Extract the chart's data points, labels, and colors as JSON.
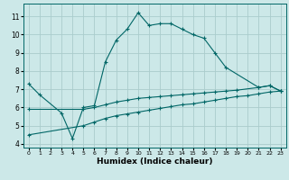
{
  "xlabel": "Humidex (Indice chaleur)",
  "bg_color": "#cce8e8",
  "grid_color": "#aacccc",
  "line_color": "#006666",
  "xlim": [
    -0.5,
    23.5
  ],
  "ylim": [
    3.8,
    11.7
  ],
  "xticks": [
    0,
    1,
    2,
    3,
    4,
    5,
    6,
    7,
    8,
    9,
    10,
    11,
    12,
    13,
    14,
    15,
    16,
    17,
    18,
    19,
    20,
    21,
    22,
    23
  ],
  "yticks": [
    4,
    5,
    6,
    7,
    8,
    9,
    10,
    11
  ],
  "curve1_x": [
    0,
    1,
    3,
    4,
    5,
    6,
    7,
    8,
    9,
    10,
    11,
    12,
    13,
    14,
    15,
    16,
    17,
    18,
    21,
    22,
    23
  ],
  "curve1_y": [
    7.3,
    6.7,
    5.7,
    4.3,
    6.0,
    6.1,
    8.5,
    9.7,
    10.3,
    11.2,
    10.5,
    10.6,
    10.6,
    10.3,
    10.0,
    9.8,
    9.0,
    8.2,
    7.1,
    7.2,
    6.9
  ],
  "curve2_x": [
    0,
    5,
    6,
    7,
    8,
    9,
    10,
    11,
    12,
    13,
    14,
    15,
    16,
    17,
    18,
    19,
    21,
    22,
    23
  ],
  "curve2_y": [
    5.9,
    5.9,
    6.0,
    6.15,
    6.3,
    6.4,
    6.5,
    6.55,
    6.6,
    6.65,
    6.7,
    6.75,
    6.8,
    6.85,
    6.9,
    6.95,
    7.1,
    7.2,
    6.9
  ],
  "curve3_x": [
    0,
    5,
    6,
    7,
    8,
    9,
    10,
    11,
    12,
    13,
    14,
    15,
    16,
    17,
    18,
    19,
    20,
    21,
    22,
    23
  ],
  "curve3_y": [
    4.5,
    5.0,
    5.2,
    5.4,
    5.55,
    5.65,
    5.75,
    5.85,
    5.95,
    6.05,
    6.15,
    6.2,
    6.3,
    6.4,
    6.5,
    6.6,
    6.65,
    6.75,
    6.85,
    6.9
  ]
}
